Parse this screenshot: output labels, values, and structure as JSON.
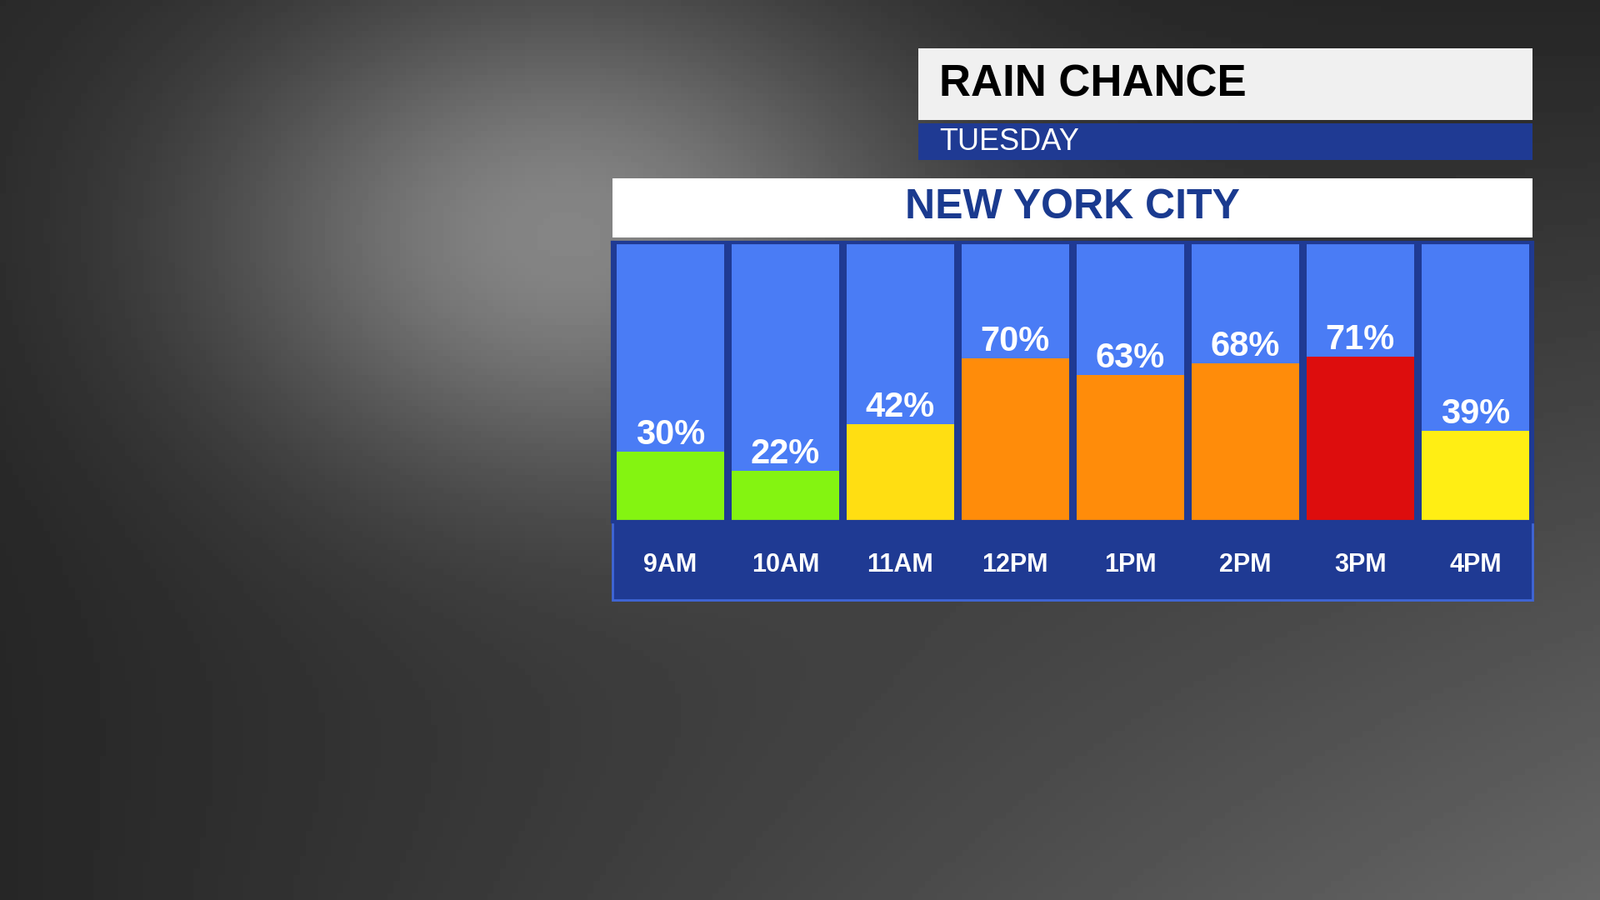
{
  "chart_data": {
    "type": "bar",
    "title": "RAIN CHANCE",
    "subtitle": "TUESDAY",
    "annotations": [
      "NEW YORK CITY"
    ],
    "categories": [
      "9AM",
      "10AM",
      "11AM",
      "12PM",
      "1PM",
      "2PM",
      "3PM",
      "4PM"
    ],
    "values": [
      30,
      22,
      42,
      70,
      63,
      68,
      71,
      39
    ],
    "value_labels": [
      "30%",
      "22%",
      "42%",
      "70%",
      "63%",
      "68%",
      "71%",
      "39%"
    ],
    "colors": [
      "#84f411",
      "#84f411",
      "#ffde12",
      "#ff8c0a",
      "#ff8c0a",
      "#ff8c0a",
      "#dd0d0d",
      "#ffee14"
    ],
    "ylim": [
      0,
      120
    ],
    "data_labels": true,
    "tick_labels": "x",
    "grid": false
  }
}
